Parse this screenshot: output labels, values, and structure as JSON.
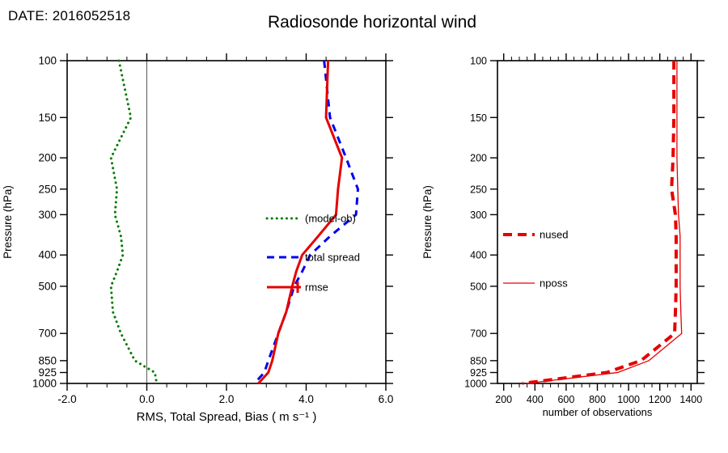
{
  "header": {
    "date": "DATE: 2016052518",
    "title": "Radiosonde horizontal wind"
  },
  "chart_data": [
    {
      "type": "line",
      "panel": "left",
      "xlabel": "RMS, Total Spread, Bias ( m s⁻¹ )",
      "ylabel": "Pressure (hPa)",
      "xlim": [
        -2.0,
        6.0
      ],
      "xtick_values": [
        -2.0,
        0.0,
        2.0,
        4.0,
        6.0
      ],
      "xtick_labels": [
        "-2.0",
        "0.0",
        "2.0",
        "4.0",
        "6.0"
      ],
      "xminor_step": 0.5,
      "ylim": [
        100,
        1000
      ],
      "yscale": "log",
      "yticks": [
        100,
        150,
        200,
        250,
        300,
        400,
        500,
        700,
        850,
        925,
        1000
      ],
      "zero_line": true,
      "grid": false,
      "legend_position": "center-right",
      "pressure_levels": [
        100,
        150,
        200,
        250,
        300,
        350,
        400,
        450,
        500,
        600,
        700,
        850,
        925,
        1000
      ],
      "series": [
        {
          "name": "(model-ob)",
          "color": "#007a00",
          "style": "dotted",
          "width": 3,
          "values": [
            -0.7,
            -0.4,
            -0.9,
            -0.75,
            -0.8,
            -0.65,
            -0.6,
            -0.75,
            -0.9,
            -0.85,
            -0.65,
            -0.3,
            0.2,
            0.25
          ]
        },
        {
          "name": "total spread",
          "color": "#0000ee",
          "style": "dashed",
          "width": 3,
          "values": [
            4.45,
            4.6,
            5.0,
            5.3,
            5.25,
            4.6,
            4.1,
            3.9,
            3.7,
            3.5,
            3.3,
            3.05,
            2.95,
            2.7
          ]
        },
        {
          "name": "rmse",
          "color": "#e60000",
          "style": "solid",
          "width": 3,
          "legend_marker": "plus",
          "values": [
            4.55,
            4.5,
            4.9,
            4.8,
            4.75,
            4.3,
            3.9,
            3.75,
            3.65,
            3.5,
            3.3,
            3.15,
            3.05,
            2.8
          ]
        }
      ]
    },
    {
      "type": "line",
      "panel": "right",
      "xlabel": "number of observations",
      "ylabel": "Pressure (hPa)",
      "xlim": [
        160,
        1440
      ],
      "xtick_values": [
        200,
        400,
        600,
        800,
        1000,
        1200,
        1400
      ],
      "xtick_labels": [
        "200",
        "400",
        "600",
        "800",
        "1000",
        "1200",
        "1400"
      ],
      "xminor_step": 50,
      "ylim": [
        100,
        1000
      ],
      "yscale": "log",
      "yticks": [
        100,
        150,
        200,
        250,
        300,
        400,
        500,
        700,
        850,
        925,
        1000
      ],
      "zero_line": false,
      "grid": false,
      "legend_position": "center-left",
      "pressure_levels": [
        100,
        150,
        200,
        250,
        300,
        350,
        400,
        450,
        500,
        600,
        700,
        850,
        925,
        1000
      ],
      "series": [
        {
          "name": "nused",
          "color": "#e60000",
          "style": "dashed",
          "width": 4,
          "values": [
            1290,
            1290,
            1285,
            1275,
            1300,
            1305,
            1305,
            1305,
            1305,
            1300,
            1295,
            1080,
            860,
            320
          ]
        },
        {
          "name": "nposs",
          "color": "#e60000",
          "style": "solid",
          "width": 1.3,
          "values": [
            1310,
            1310,
            1310,
            1315,
            1320,
            1330,
            1330,
            1330,
            1330,
            1335,
            1340,
            1130,
            930,
            345
          ]
        }
      ]
    }
  ]
}
